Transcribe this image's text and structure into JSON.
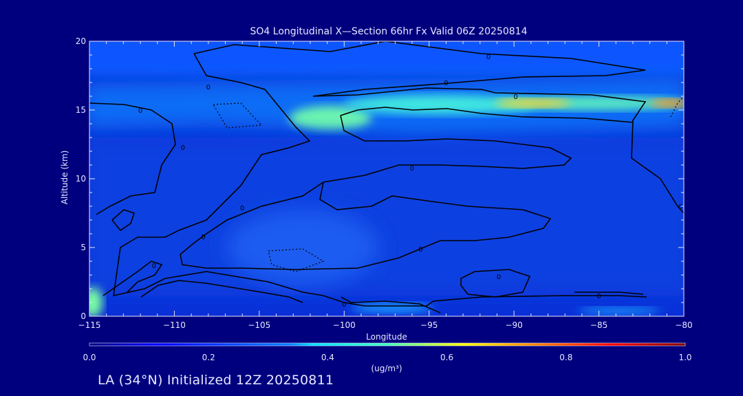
{
  "chart_data": {
    "type": "heatmap",
    "title": "SO4 Longitudinal X—Section 66hr  Fx Valid 06Z 20250814",
    "xlabel": "Longitude",
    "ylabel": "Altitude (km)",
    "xlim": [
      -115,
      -80
    ],
    "ylim": [
      0,
      20
    ],
    "x_ticks": [
      -115,
      -110,
      -105,
      -100,
      -95,
      -90,
      -85,
      -80
    ],
    "x_tick_labels": [
      "−115",
      "−110",
      "−105",
      "−100",
      "−95",
      "−90",
      "−85",
      "−80"
    ],
    "y_ticks": [
      0,
      5,
      10,
      15,
      20
    ],
    "y_tick_labels": [
      "0",
      "5",
      "10",
      "15",
      "20"
    ],
    "colorbar": {
      "label": "(ug/m³)",
      "range": [
        0.0,
        1.0
      ],
      "ticks": [
        0.0,
        0.2,
        0.4,
        0.6,
        0.8,
        1.0
      ],
      "tick_labels": [
        "0.0",
        "0.2",
        "0.4",
        "0.6",
        "0.8",
        "1.0"
      ],
      "colormap": "jet"
    },
    "contour_label": "0",
    "features": [
      {
        "lon": -112,
        "alt": 6,
        "value": 0.18
      },
      {
        "lon": -102.5,
        "alt": 14.3,
        "value": 0.55
      },
      {
        "lon": -97,
        "alt": 14.5,
        "value": 0.5
      },
      {
        "lon": -92,
        "alt": 15.2,
        "value": 0.48
      },
      {
        "lon": -89,
        "alt": 15.3,
        "value": 0.62
      },
      {
        "lon": -80.5,
        "alt": 15.3,
        "value": 0.66
      },
      {
        "lon": -114.7,
        "alt": 0.6,
        "value": 0.52
      },
      {
        "lon": -97.5,
        "alt": 0.4,
        "value": 0.3
      },
      {
        "lon": -101,
        "alt": 5.5,
        "value": 0.22
      }
    ]
  },
  "footer": "LA (34°N) Initialized 12Z 20250811"
}
